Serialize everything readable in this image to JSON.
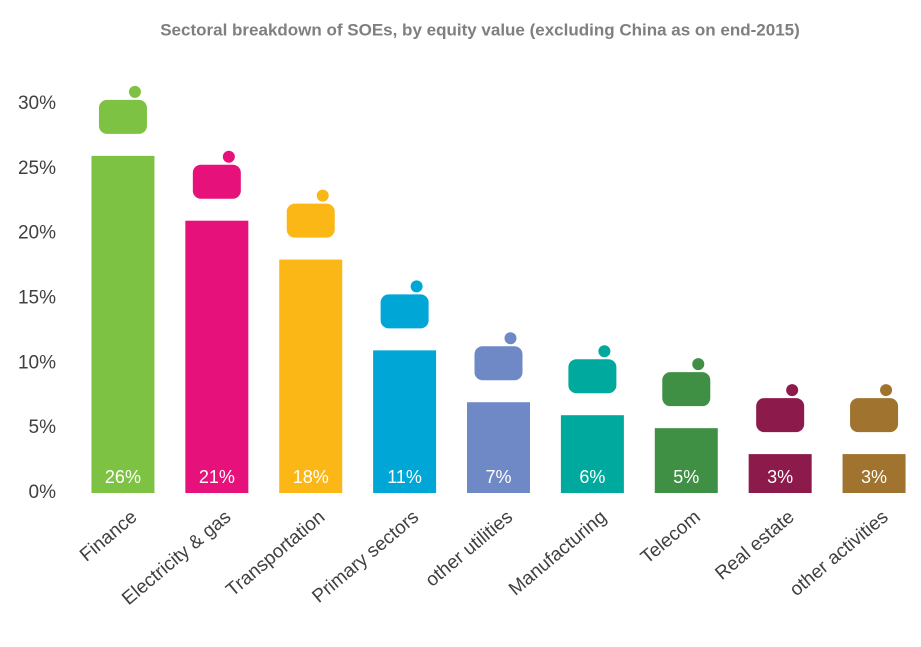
{
  "chart_data": {
    "type": "bar",
    "title": "Sectoral breakdown of SOEs, by equity value (excluding China as on end-2015)",
    "categories": [
      "Finance",
      "Electricity & gas",
      "Transportation",
      "Primary sectors",
      "other utilities",
      "Manufacturing",
      "Telecom",
      "Real estate",
      "other activities"
    ],
    "values": [
      26,
      21,
      18,
      11,
      7,
      6,
      5,
      3,
      3
    ],
    "value_labels": [
      "26%",
      "21%",
      "18%",
      "11%",
      "7%",
      "6%",
      "5%",
      "3%",
      "3%"
    ],
    "colors": [
      "#7dc242",
      "#e6117b",
      "#fbb715",
      "#00a6d6",
      "#6f88c6",
      "#00a99d",
      "#3f8f45",
      "#8c1a4b",
      "#a0732e"
    ],
    "ylim": [
      0,
      30
    ],
    "yticks": [
      {
        "value": 0,
        "label": "0%"
      },
      {
        "value": 5,
        "label": "5%"
      },
      {
        "value": 10,
        "label": "10%"
      },
      {
        "value": 15,
        "label": "15%"
      },
      {
        "value": 20,
        "label": "20%"
      },
      {
        "value": 25,
        "label": "25%"
      },
      {
        "value": 30,
        "label": "30%"
      }
    ],
    "grid": false
  }
}
